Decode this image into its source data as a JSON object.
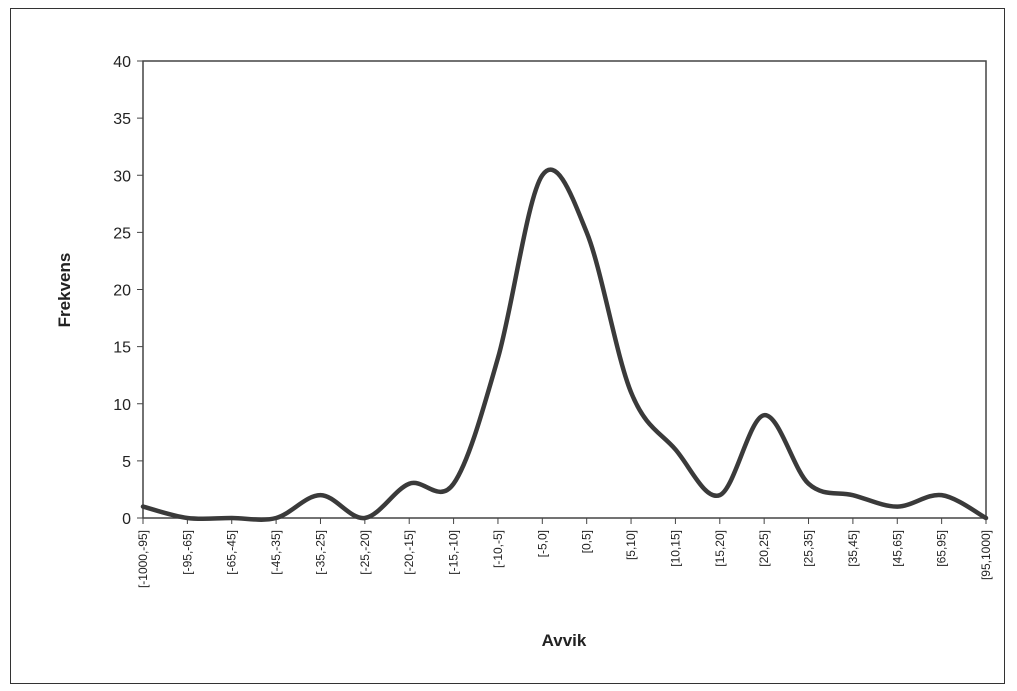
{
  "chart_data": {
    "type": "line",
    "title": "",
    "xlabel": "Avvik",
    "ylabel": "Frekvens",
    "ylim": [
      0,
      40
    ],
    "yticks": [
      "0",
      "5",
      "10",
      "15",
      "20",
      "25",
      "30",
      "35",
      "40"
    ],
    "grid": false,
    "legend": "none",
    "line_color": "#3a3a3a",
    "categories": [
      "[-1000,-95]",
      "[-95,-65]",
      "[-65,-45]",
      "[-45,-35]",
      "[-35,-25]",
      "[-25,-20]",
      "[-20,-15]",
      "[-15,-10]",
      "[-10,-5]",
      "[-5,0]",
      "[0,5]",
      "[5,10]",
      "[10,15]",
      "[15,20]",
      "[20,25]",
      "[25,35]",
      "[35,45]",
      "[45,65]",
      "[65,95]",
      "[95,1000]"
    ],
    "series": [
      {
        "name": "",
        "values": [
          1,
          0,
          0,
          0,
          2,
          0,
          3,
          3,
          14,
          30,
          25,
          11,
          6,
          2,
          9,
          3,
          2,
          1,
          2,
          0
        ]
      }
    ]
  }
}
